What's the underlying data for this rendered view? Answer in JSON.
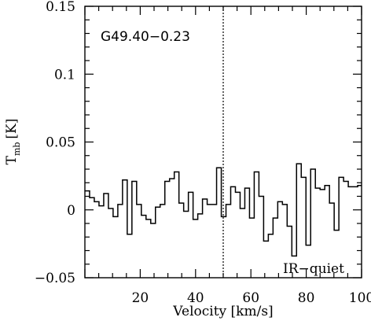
{
  "chart_data": {
    "type": "line",
    "step": true,
    "title": "",
    "xlabel": "Velocity [km/s]",
    "ylabel_main": "T",
    "ylabel_sub": "mb",
    "ylabel_unit": "[K]",
    "xlim": [
      0,
      100
    ],
    "ylim": [
      -0.05,
      0.15
    ],
    "xticks": [
      20,
      40,
      60,
      80,
      100
    ],
    "xtick_labels": [
      "20",
      "40",
      "60",
      "80",
      "100"
    ],
    "yticks": [
      -0.05,
      0,
      0.05,
      0.1,
      0.15
    ],
    "ytick_labels": [
      "−0.05",
      "0",
      "0.05",
      "0.1",
      "0.15"
    ],
    "grid": false,
    "reference_line_x": 50,
    "annotations": {
      "source": "G49.40−0.23",
      "classification": "IR−quiet"
    },
    "series": [
      {
        "x": [
          0,
          1.7,
          3.4,
          5.1,
          6.8,
          8.5,
          10.2,
          11.9,
          13.6,
          15.3,
          17.0,
          18.7,
          20.4,
          22.1,
          23.8,
          25.5,
          27.2,
          28.9,
          30.6,
          32.3,
          34.0,
          35.7,
          37.4,
          39.1,
          40.8,
          42.5,
          44.2,
          45.9,
          47.6,
          49.3,
          51.0,
          52.7,
          54.4,
          56.1,
          57.8,
          59.5,
          61.2,
          62.9,
          64.6,
          66.3,
          68.0,
          69.7,
          71.4,
          73.1,
          74.8,
          76.5,
          78.2,
          79.9,
          81.6,
          83.3,
          85.0,
          86.7,
          88.4,
          90.1,
          91.8,
          93.5,
          95.2,
          96.9,
          98.6
        ],
        "y": [
          0.014,
          0.009,
          0.006,
          0.003,
          0.012,
          0.001,
          -0.005,
          0.004,
          0.022,
          -0.018,
          0.021,
          0.004,
          -0.004,
          -0.007,
          -0.01,
          0.002,
          0.004,
          0.021,
          0.023,
          0.028,
          0.005,
          -0.001,
          0.013,
          -0.007,
          -0.003,
          0.008,
          0.004,
          0.004,
          0.031,
          -0.005,
          0.004,
          0.017,
          0.013,
          0.001,
          0.016,
          -0.006,
          0.028,
          0.01,
          -0.023,
          -0.018,
          -0.006,
          0.006,
          0.004,
          -0.012,
          -0.034,
          0.034,
          0.024,
          -0.026,
          0.03,
          0.016,
          0.015,
          0.018,
          0.005,
          -0.015,
          0.024,
          0.021,
          0.017,
          0.017,
          0.018
        ]
      }
    ]
  }
}
